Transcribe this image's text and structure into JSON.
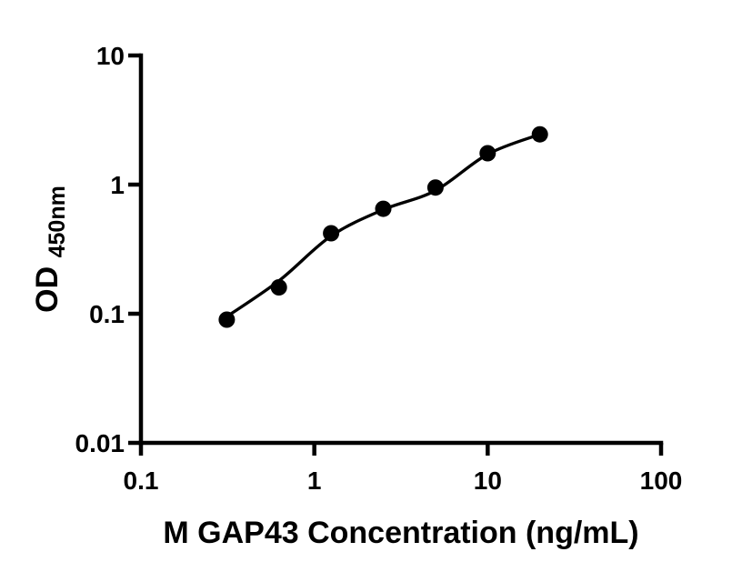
{
  "chart_data": {
    "type": "scatter",
    "title": "",
    "xlabel": "M GAP43 Concentration (ng/mL)",
    "ylabel": "OD450nm",
    "ylabel_main": "OD",
    "ylabel_sub": "450nm",
    "x_scale": "log",
    "y_scale": "log",
    "xlim": [
      0.1,
      100
    ],
    "ylim": [
      0.01,
      10
    ],
    "grid": false,
    "legend": false,
    "x_ticks": [
      {
        "v": 0.1,
        "label": "0.1"
      },
      {
        "v": 1,
        "label": "1"
      },
      {
        "v": 10,
        "label": "10"
      },
      {
        "v": 100,
        "label": "100"
      }
    ],
    "y_ticks": [
      {
        "v": 0.01,
        "label": "0.01"
      },
      {
        "v": 0.1,
        "label": "0.1"
      },
      {
        "v": 1,
        "label": "1"
      },
      {
        "v": 10,
        "label": "10"
      }
    ],
    "points": [
      {
        "x": 0.3125,
        "y": 0.09
      },
      {
        "x": 0.625,
        "y": 0.16
      },
      {
        "x": 1.25,
        "y": 0.42
      },
      {
        "x": 2.5,
        "y": 0.65
      },
      {
        "x": 5,
        "y": 0.95
      },
      {
        "x": 10,
        "y": 1.75
      },
      {
        "x": 20,
        "y": 2.45
      }
    ],
    "fit_curve": [
      {
        "x": 0.3125,
        "y": 0.095
      },
      {
        "x": 0.625,
        "y": 0.18
      },
      {
        "x": 1.25,
        "y": 0.4
      },
      {
        "x": 2.5,
        "y": 0.64
      },
      {
        "x": 5,
        "y": 0.9
      },
      {
        "x": 10,
        "y": 1.72
      },
      {
        "x": 20,
        "y": 2.45
      }
    ],
    "marker_color": "#000000",
    "curve_color": "#000000",
    "axis_color": "#000000",
    "background": "#ffffff"
  }
}
